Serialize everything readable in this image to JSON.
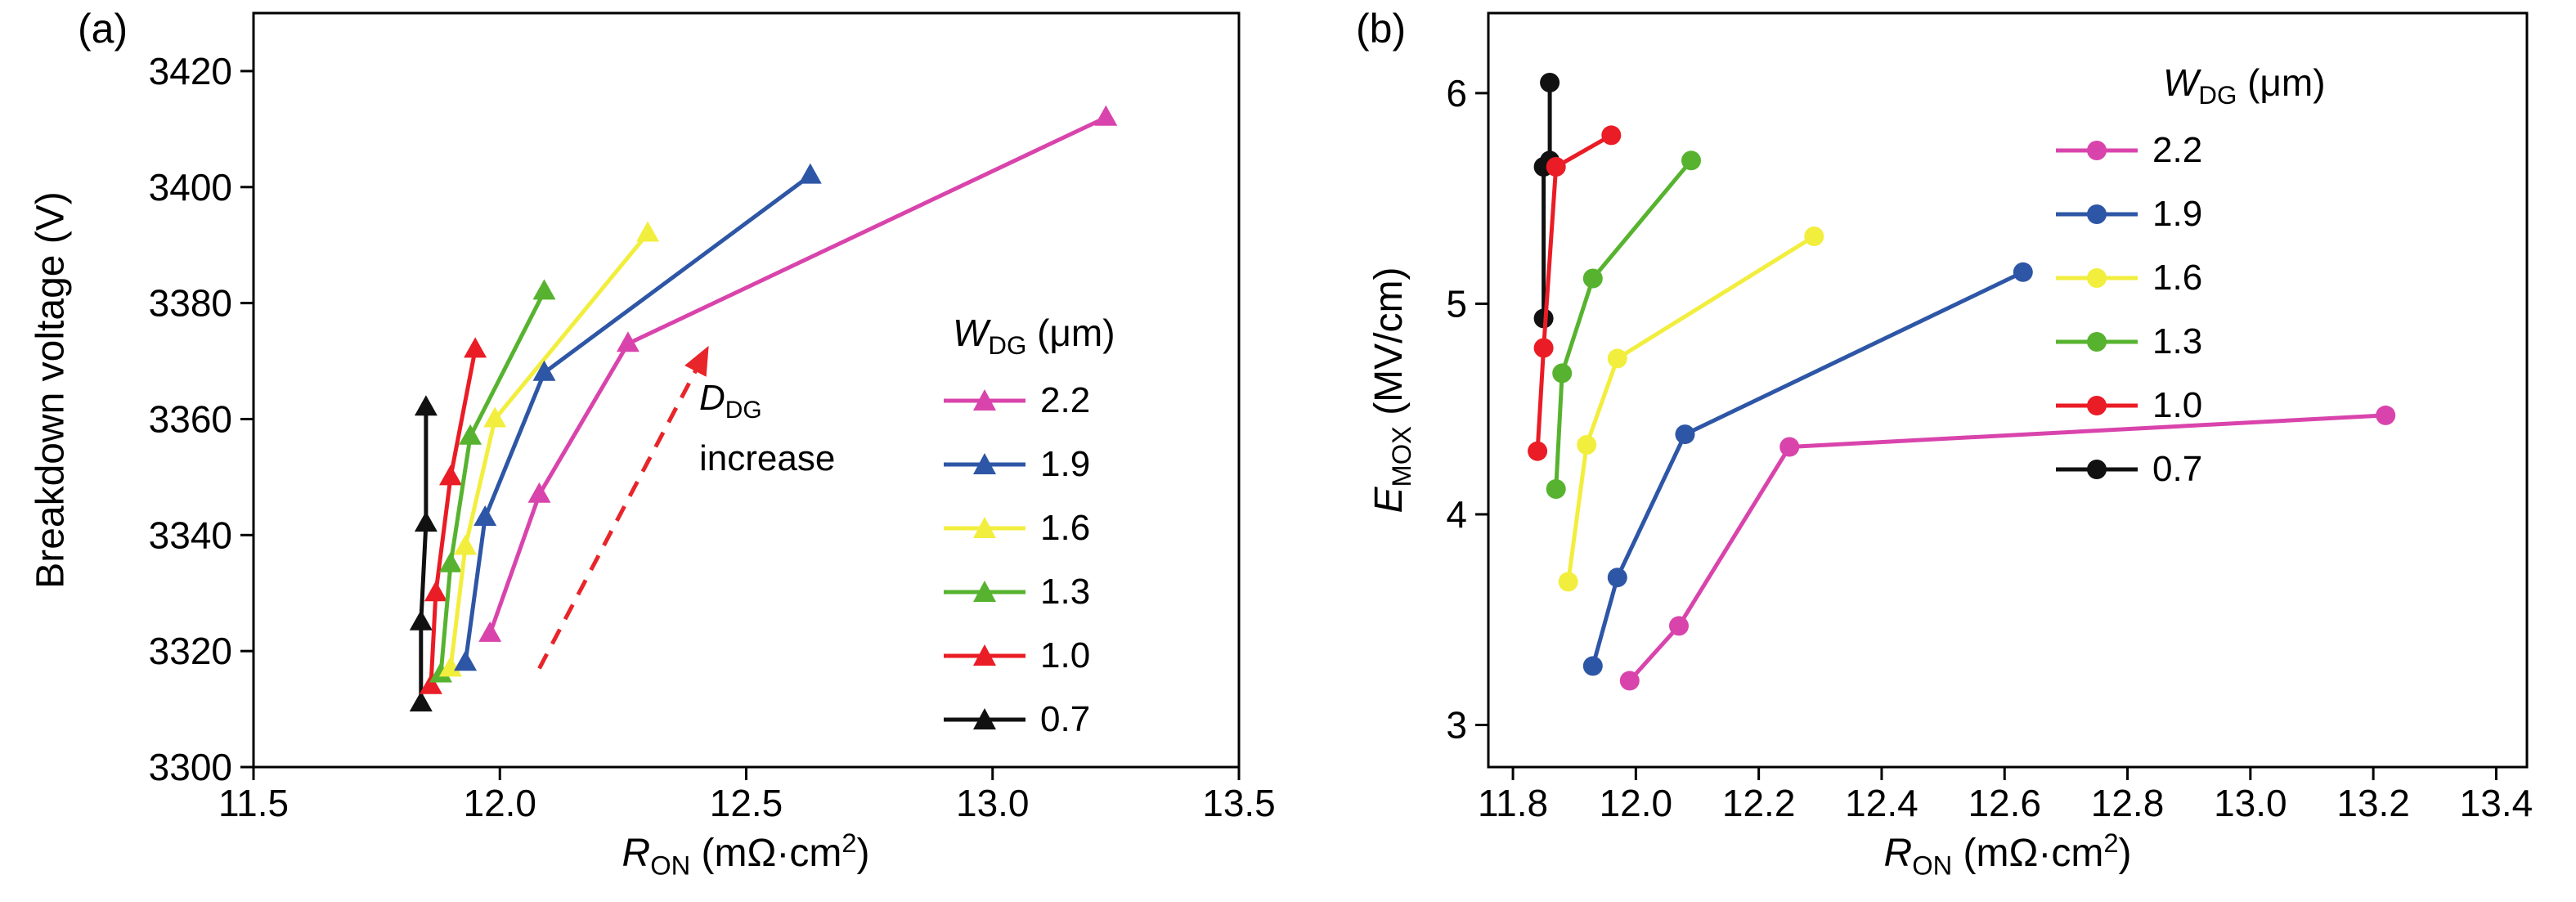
{
  "figure": {
    "background": "#ffffff"
  },
  "chart_data": [
    {
      "id": "a",
      "type": "line",
      "panel_label": "(a)",
      "marker": "triangle",
      "xlabel": "*R*_[ON] (mΩ·cm^[2])",
      "ylabel": "Breakdown voltage (V)",
      "xlim": [
        11.5,
        13.5
      ],
      "ylim": [
        3300,
        3430
      ],
      "xticks": [
        11.5,
        12.0,
        12.5,
        13.0,
        13.5
      ],
      "xtick_labels": [
        "11.5",
        "12.0",
        "12.5",
        "13.0",
        "13.5"
      ],
      "yticks": [
        3300,
        3320,
        3340,
        3360,
        3380,
        3400,
        3420
      ],
      "ytick_labels": [
        "3300",
        "3320",
        "3340",
        "3360",
        "3380",
        "3400",
        "3420"
      ],
      "grid": false,
      "legend_title": "*W*_[DG] (μm)",
      "legend_position": "right-middle",
      "annotation": {
        "line1": "*D*_[DG]",
        "line2": "increase"
      },
      "arrow": {
        "x1": 12.08,
        "y1": 3317,
        "x2": 12.42,
        "y2": 3372,
        "color": "#e8252a",
        "style": "dashed"
      },
      "series": [
        {
          "name": "2.2",
          "color": "#d944ac",
          "points": [
            [
              11.98,
              3323
            ],
            [
              12.08,
              3347
            ],
            [
              12.26,
              3373
            ],
            [
              13.23,
              3412
            ]
          ]
        },
        {
          "name": "1.9",
          "color": "#2e56a6",
          "points": [
            [
              11.93,
              3318
            ],
            [
              11.97,
              3343
            ],
            [
              12.09,
              3368
            ],
            [
              12.63,
              3402
            ]
          ]
        },
        {
          "name": "1.6",
          "color": "#f2ee3e",
          "points": [
            [
              11.9,
              3317
            ],
            [
              11.93,
              3338
            ],
            [
              11.99,
              3360
            ],
            [
              12.3,
              3392
            ]
          ]
        },
        {
          "name": "1.3",
          "color": "#57b32f",
          "points": [
            [
              11.88,
              3316
            ],
            [
              11.9,
              3335
            ],
            [
              11.94,
              3357
            ],
            [
              12.09,
              3382
            ]
          ]
        },
        {
          "name": "1.0",
          "color": "#ea1c25",
          "points": [
            [
              11.86,
              3314
            ],
            [
              11.87,
              3330
            ],
            [
              11.9,
              3350
            ],
            [
              11.95,
              3372
            ]
          ]
        },
        {
          "name": "0.7",
          "color": "#111111",
          "points": [
            [
              11.84,
              3311
            ],
            [
              11.84,
              3325
            ],
            [
              11.85,
              3342
            ],
            [
              11.85,
              3362
            ]
          ]
        }
      ]
    },
    {
      "id": "b",
      "type": "line",
      "panel_label": "(b)",
      "marker": "circle",
      "xlabel": "*R*_[ON] (mΩ·cm^[2])",
      "ylabel": "*E*_[MOX] (MV/cm)",
      "xlim": [
        11.76,
        13.45
      ],
      "ylim": [
        2.8,
        6.38
      ],
      "xticks": [
        11.8,
        12.0,
        12.2,
        12.4,
        12.6,
        12.8,
        13.0,
        13.2,
        13.4
      ],
      "xtick_labels": [
        "11.8",
        "12.0",
        "12.2",
        "12.4",
        "12.6",
        "12.8",
        "13.0",
        "13.2",
        "13.4"
      ],
      "yticks": [
        3,
        4,
        5,
        6
      ],
      "ytick_labels": [
        "3",
        "4",
        "5",
        "6"
      ],
      "grid": false,
      "legend_title": "*W*_[DG] (μm)",
      "legend_position": "top-right",
      "series": [
        {
          "name": "2.2",
          "color": "#d944ac",
          "points": [
            [
              11.99,
              3.21
            ],
            [
              12.07,
              3.47
            ],
            [
              12.25,
              4.32
            ],
            [
              13.22,
              4.47
            ]
          ]
        },
        {
          "name": "1.9",
          "color": "#2e56a6",
          "points": [
            [
              11.93,
              3.28
            ],
            [
              11.97,
              3.7
            ],
            [
              12.08,
              4.38
            ],
            [
              12.63,
              5.15
            ]
          ]
        },
        {
          "name": "1.6",
          "color": "#f2ee3e",
          "points": [
            [
              11.89,
              3.68
            ],
            [
              11.92,
              4.33
            ],
            [
              11.97,
              4.74
            ],
            [
              12.29,
              5.32
            ]
          ]
        },
        {
          "name": "1.3",
          "color": "#57b32f",
          "points": [
            [
              11.87,
              4.12
            ],
            [
              11.88,
              4.67
            ],
            [
              11.93,
              5.12
            ],
            [
              12.09,
              5.68
            ]
          ]
        },
        {
          "name": "1.0",
          "color": "#ea1c25",
          "points": [
            [
              11.84,
              4.3
            ],
            [
              11.85,
              4.79
            ],
            [
              11.87,
              5.65
            ],
            [
              11.96,
              5.8
            ]
          ]
        },
        {
          "name": "0.7",
          "color": "#111111",
          "points": [
            [
              11.85,
              4.93
            ],
            [
              11.85,
              5.65
            ],
            [
              11.86,
              5.68
            ],
            [
              11.86,
              6.05
            ]
          ]
        }
      ]
    }
  ]
}
